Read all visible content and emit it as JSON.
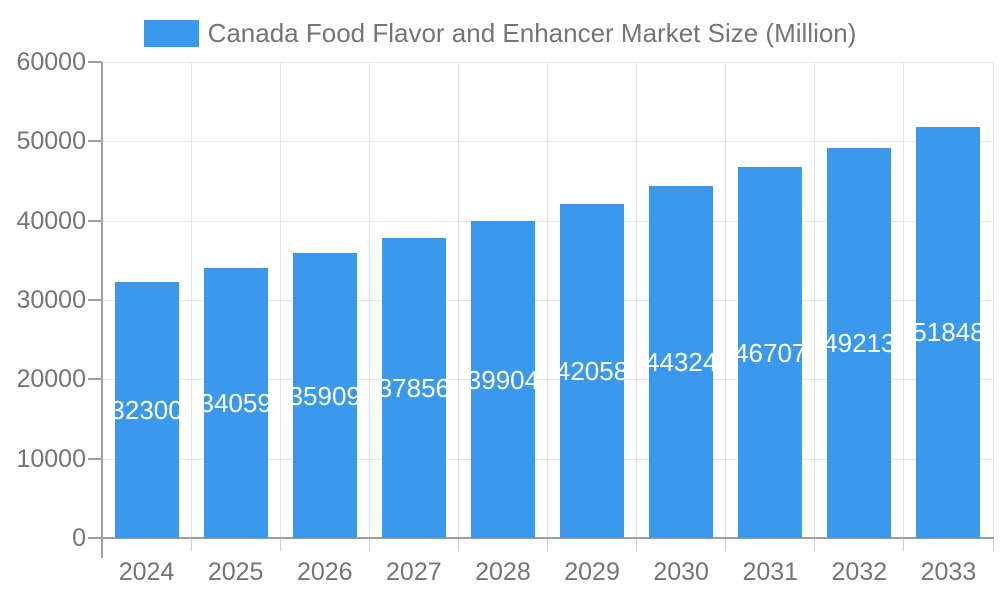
{
  "legend": {
    "label": "Canada Food Flavor and Enhancer Market Size (Million)"
  },
  "chart_data": {
    "type": "bar",
    "title": "Canada Food Flavor and Enhancer Market Size (Million)",
    "categories": [
      "2024",
      "2025",
      "2026",
      "2027",
      "2028",
      "2029",
      "2030",
      "2031",
      "2032",
      "2033"
    ],
    "values": [
      32300,
      34059,
      35909,
      37856,
      39904,
      42058,
      44324,
      46707,
      49213,
      51848
    ],
    "data_labels": [
      "32300",
      "34059",
      "35909",
      "37856",
      "39904",
      "42058",
      "44324",
      "46707",
      "49213",
      "51848"
    ],
    "xlabel": "",
    "ylabel": "",
    "ylim": [
      0,
      60000
    ],
    "y_ticks": [
      0,
      10000,
      20000,
      30000,
      40000,
      50000,
      60000
    ],
    "y_tick_labels": [
      "0",
      "10000",
      "20000",
      "30000",
      "40000",
      "50000",
      "60000"
    ],
    "grid": true,
    "legend_position": "top-center",
    "colors": {
      "bar": "#3a99ec",
      "data_label_text": "#ffffff",
      "axis_text": "#757575",
      "gridline": "#e6e6e6",
      "axis_line": "#9e9e9e",
      "x_tick": "#cccccc"
    }
  }
}
